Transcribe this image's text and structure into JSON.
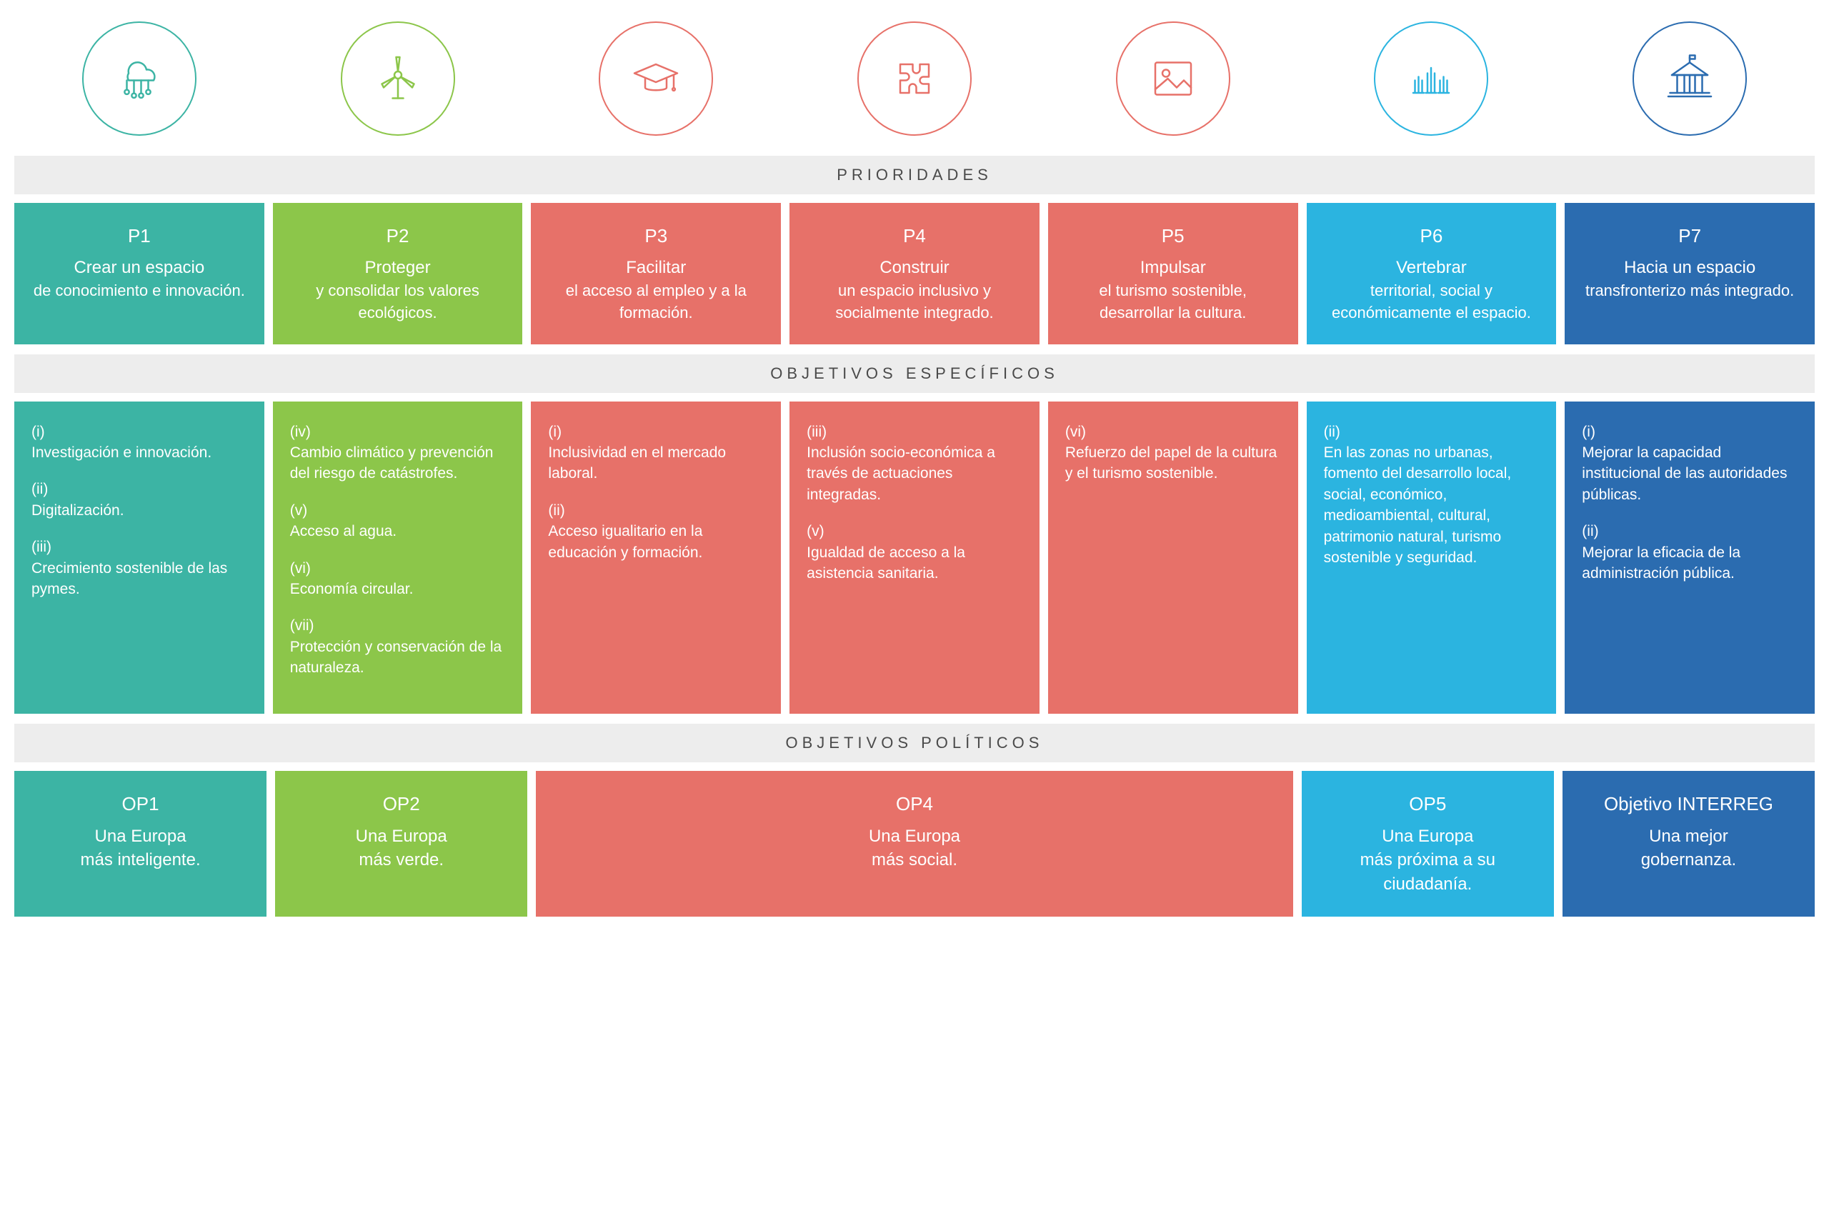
{
  "colors": {
    "teal": "#3cb4a4",
    "green": "#8cc64a",
    "red": "#e77169",
    "cyan": "#2bb4e0",
    "blue": "#2b6cb0",
    "header_bg": "#ededed",
    "header_text": "#4a4a4a",
    "white": "#ffffff"
  },
  "icons": [
    {
      "name": "cloud-network-icon",
      "color": "#3cb4a4"
    },
    {
      "name": "wind-turbine-icon",
      "color": "#8cc64a"
    },
    {
      "name": "graduation-cap-icon",
      "color": "#e77169"
    },
    {
      "name": "puzzle-icon",
      "color": "#e77169"
    },
    {
      "name": "picture-icon",
      "color": "#e77169"
    },
    {
      "name": "hands-raised-icon",
      "color": "#2bb4e0"
    },
    {
      "name": "government-building-icon",
      "color": "#2b6cb0"
    }
  ],
  "sections": {
    "prioridades": "PRIORIDADES",
    "objetivos": "OBJETIVOS ESPECÍFICOS",
    "politicos": "OBJETIVOS POLÍTICOS"
  },
  "prioridades": [
    {
      "code": "P1",
      "title": "Crear un espacio",
      "sub": "de conocimiento e innovación.",
      "color": "#3cb4a4"
    },
    {
      "code": "P2",
      "title": "Proteger",
      "sub": "y consolidar los valores ecológicos.",
      "color": "#8cc64a"
    },
    {
      "code": "P3",
      "title": "Facilitar",
      "sub": "el acceso al empleo y a la formación.",
      "color": "#e77169"
    },
    {
      "code": "P4",
      "title": "Construir",
      "sub": "un espacio inclusivo y socialmente integrado.",
      "color": "#e77169"
    },
    {
      "code": "P5",
      "title": "Impulsar",
      "sub": "el turismo sostenible, desarrollar la cultura.",
      "color": "#e77169"
    },
    {
      "code": "P6",
      "title": "Vertebrar",
      "sub": "territorial, social y económicamente el espacio.",
      "color": "#2bb4e0"
    },
    {
      "code": "P7",
      "title": "Hacia un espacio",
      "sub": "transfronterizo más integrado.",
      "color": "#2b6cb0"
    }
  ],
  "objetivos": [
    {
      "color": "#3cb4a4",
      "items": [
        {
          "num": "(i)",
          "txt": "Investigación e innovación."
        },
        {
          "num": "(ii)",
          "txt": "Digitalización."
        },
        {
          "num": "(iii)",
          "txt": "Crecimiento sostenible de las pymes."
        }
      ]
    },
    {
      "color": "#8cc64a",
      "items": [
        {
          "num": "(iv)",
          "txt": "Cambio climático y prevención del riesgo de catástrofes."
        },
        {
          "num": "(v)",
          "txt": "Acceso al agua."
        },
        {
          "num": "(vi)",
          "txt": "Economía circular."
        },
        {
          "num": "(vii)",
          "txt": "Protección y conservación de la naturaleza."
        }
      ]
    },
    {
      "color": "#e77169",
      "items": [
        {
          "num": "(i)",
          "txt": "Inclusividad en el mercado laboral."
        },
        {
          "num": "(ii)",
          "txt": "Acceso igualitario en la educación y formación."
        }
      ]
    },
    {
      "color": "#e77169",
      "items": [
        {
          "num": "(iii)",
          "txt": "Inclusión socio-económica a través de actuaciones integradas."
        },
        {
          "num": "(v)",
          "txt": "Igualdad de acceso a la asistencia sanitaria."
        }
      ]
    },
    {
      "color": "#e77169",
      "items": [
        {
          "num": "(vi)",
          "txt": "Refuerzo del papel de la cultura y el turismo sostenible."
        }
      ]
    },
    {
      "color": "#2bb4e0",
      "items": [
        {
          "num": "(ii)",
          "txt": "En las zonas no urbanas, fomento del desarrollo local, social, económico, medioambiental, cultural, patrimonio natural, turismo sostenible y seguridad."
        }
      ]
    },
    {
      "color": "#2b6cb0",
      "items": [
        {
          "num": "(i)",
          "txt": "Mejorar la capacidad institucional de las autoridades públicas."
        },
        {
          "num": "(ii)",
          "txt": "Mejorar la eficacia de la administración pública."
        }
      ]
    }
  ],
  "politicos_layout": {
    "columns": "1fr 1fr 3fr 1fr 1fr",
    "gap": 12
  },
  "politicos": [
    {
      "code": "OP1",
      "t1": "Una Europa",
      "t2": "más inteligente.",
      "color": "#3cb4a4"
    },
    {
      "code": "OP2",
      "t1": "Una Europa",
      "t2": "más verde.",
      "color": "#8cc64a"
    },
    {
      "code": "OP4",
      "t1": "Una Europa",
      "t2": "más social.",
      "color": "#e77169"
    },
    {
      "code": "OP5",
      "t1": "Una Europa",
      "t2": "más próxima a su ciudadanía.",
      "color": "#2bb4e0"
    },
    {
      "code": "Objetivo INTERREG",
      "t1": "Una mejor",
      "t2": "gobernanza.",
      "color": "#2b6cb0"
    }
  ]
}
